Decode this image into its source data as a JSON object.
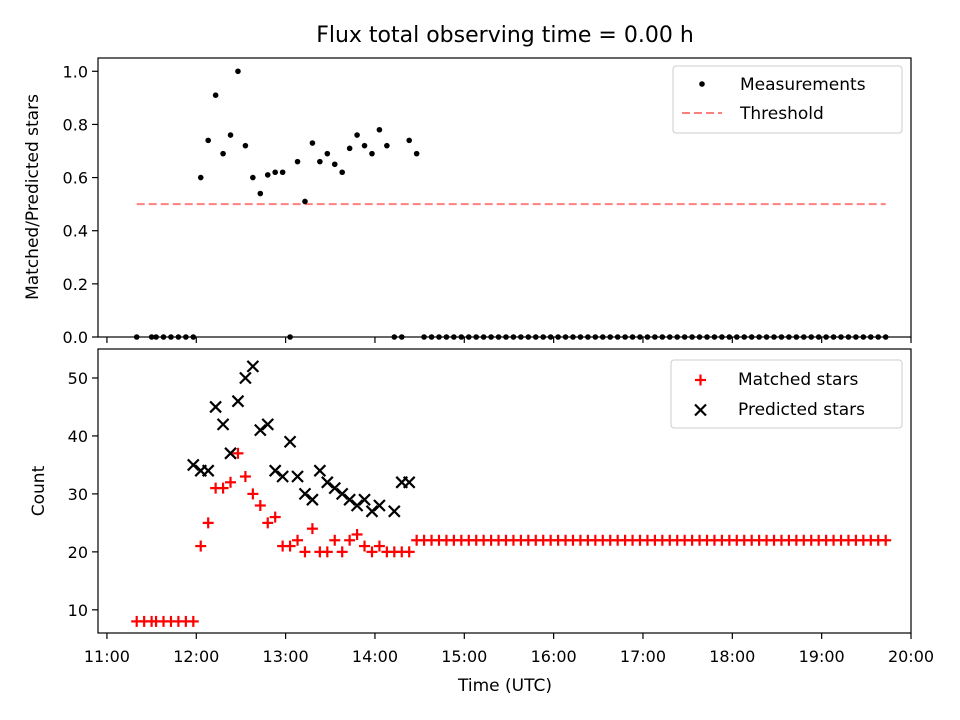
{
  "figure": {
    "title": "Flux total observing time = 0.00 h",
    "background": "#ffffff"
  },
  "chart_data": [
    {
      "type": "scatter",
      "panel": "top",
      "ylabel": "Matched/Predicted stars",
      "ylim": [
        0.0,
        1.05
      ],
      "yticks": [
        0.0,
        0.2,
        0.4,
        0.6,
        0.8,
        1.0
      ],
      "ytick_labels": [
        "0.0",
        "0.2",
        "0.4",
        "0.6",
        "0.8",
        "1.0"
      ],
      "xlim_hours": [
        10.9,
        20.0
      ],
      "xticks_hours": [
        11,
        12,
        13,
        14,
        15,
        16,
        17,
        18,
        19,
        20
      ],
      "xtick_labels_shown": false,
      "legend": {
        "placement": "upper-right",
        "entries": [
          "Measurements",
          "Threshold"
        ]
      },
      "series": [
        {
          "name": "Measurements",
          "marker": "dot",
          "color": "#000000",
          "x": [
            "11:20",
            "11:30",
            "11:33",
            "11:38",
            "11:43",
            "11:48",
            "11:53",
            "11:58",
            "12:03",
            "12:08",
            "12:13",
            "12:18",
            "12:23",
            "12:28",
            "12:33",
            "12:38",
            "12:43",
            "12:48",
            "12:53",
            "12:58",
            "13:03",
            "13:08",
            "13:13",
            "13:18",
            "13:23",
            "13:28",
            "13:33",
            "13:38",
            "13:43",
            "13:48",
            "13:53",
            "13:58",
            "14:03",
            "14:08",
            "14:13",
            "14:18",
            "14:23",
            "14:28",
            "14:33",
            "14:38",
            "14:43",
            "14:48",
            "14:53",
            "14:58",
            "15:03",
            "15:08",
            "15:13",
            "15:18",
            "15:23",
            "15:28",
            "15:33",
            "15:38",
            "15:43",
            "15:48",
            "15:53",
            "15:58",
            "16:03",
            "16:08",
            "16:13",
            "16:18",
            "16:23",
            "16:28",
            "16:33",
            "16:38",
            "16:43",
            "16:48",
            "16:53",
            "16:58",
            "17:03",
            "17:08",
            "17:13",
            "17:18",
            "17:23",
            "17:28",
            "17:33",
            "17:38",
            "17:43",
            "17:48",
            "17:53",
            "17:58",
            "18:03",
            "18:08",
            "18:13",
            "18:18",
            "18:23",
            "18:28",
            "18:33",
            "18:38",
            "18:43",
            "18:48",
            "18:53",
            "18:58",
            "19:03",
            "19:08",
            "19:13",
            "19:18",
            "19:23",
            "19:28",
            "19:33",
            "19:38",
            "19:43"
          ],
          "y": [
            0.0,
            0.0,
            0.0,
            0.0,
            0.0,
            0.0,
            0.0,
            0.0,
            0.6,
            0.74,
            0.91,
            0.69,
            0.76,
            1.0,
            0.72,
            0.6,
            0.54,
            0.61,
            0.62,
            0.62,
            0.0,
            0.66,
            0.51,
            0.73,
            0.66,
            0.69,
            0.65,
            0.62,
            0.71,
            0.76,
            0.72,
            0.69,
            0.78,
            0.72,
            0.0,
            0.0,
            0.74,
            0.69,
            0.0,
            0.0,
            0.0,
            0.0,
            0.0,
            0.0,
            0.0,
            0.0,
            0.0,
            0.0,
            0.0,
            0.0,
            0.0,
            0.0,
            0.0,
            0.0,
            0.0,
            0.0,
            0.0,
            0.0,
            0.0,
            0.0,
            0.0,
            0.0,
            0.0,
            0.0,
            0.0,
            0.0,
            0.0,
            0.0,
            0.0,
            0.0,
            0.0,
            0.0,
            0.0,
            0.0,
            0.0,
            0.0,
            0.0,
            0.0,
            0.0,
            0.0,
            0.0,
            0.0,
            0.0,
            0.0,
            0.0,
            0.0,
            0.0,
            0.0,
            0.0,
            0.0,
            0.0,
            0.0,
            0.0,
            0.0,
            0.0,
            0.0,
            0.0,
            0.0,
            0.0,
            0.0,
            0.0
          ]
        },
        {
          "name": "Threshold",
          "marker": "dashed-line",
          "color": "#ff7f7f",
          "x": [
            "11:20",
            "19:43"
          ],
          "y": [
            0.5,
            0.5
          ]
        }
      ]
    },
    {
      "type": "scatter",
      "panel": "bottom",
      "xlabel": "Time (UTC)",
      "ylabel": "Count",
      "ylim": [
        6,
        55
      ],
      "yticks": [
        10,
        20,
        30,
        40,
        50
      ],
      "ytick_labels": [
        "10",
        "20",
        "30",
        "40",
        "50"
      ],
      "xlim_hours": [
        10.9,
        20.0
      ],
      "xticks_hours": [
        11,
        12,
        13,
        14,
        15,
        16,
        17,
        18,
        19,
        20
      ],
      "xtick_labels": [
        "11:00",
        "12:00",
        "13:00",
        "14:00",
        "15:00",
        "16:00",
        "17:00",
        "18:00",
        "19:00",
        "20:00"
      ],
      "legend": {
        "placement": "upper-right",
        "entries": [
          "Matched stars",
          "Predicted stars"
        ]
      },
      "series": [
        {
          "name": "Matched stars",
          "marker": "plus",
          "color": "#ff0000",
          "x": [
            "11:20",
            "11:25",
            "11:30",
            "11:33",
            "11:38",
            "11:43",
            "11:48",
            "11:53",
            "11:58",
            "12:03",
            "12:08",
            "12:13",
            "12:18",
            "12:23",
            "12:28",
            "12:33",
            "12:38",
            "12:43",
            "12:48",
            "12:53",
            "12:58",
            "13:03",
            "13:08",
            "13:13",
            "13:18",
            "13:23",
            "13:28",
            "13:33",
            "13:38",
            "13:43",
            "13:48",
            "13:53",
            "13:58",
            "14:03",
            "14:08",
            "14:13",
            "14:18",
            "14:23",
            "14:28",
            "14:33",
            "14:38",
            "14:43",
            "14:48",
            "14:53",
            "14:58",
            "15:03",
            "15:08",
            "15:13",
            "15:18",
            "15:23",
            "15:28",
            "15:33",
            "15:38",
            "15:43",
            "15:48",
            "15:53",
            "15:58",
            "16:03",
            "16:08",
            "16:13",
            "16:18",
            "16:23",
            "16:28",
            "16:33",
            "16:38",
            "16:43",
            "16:48",
            "16:53",
            "16:58",
            "17:03",
            "17:08",
            "17:13",
            "17:18",
            "17:23",
            "17:28",
            "17:33",
            "17:38",
            "17:43",
            "17:48",
            "17:53",
            "17:58",
            "18:03",
            "18:08",
            "18:13",
            "18:18",
            "18:23",
            "18:28",
            "18:33",
            "18:38",
            "18:43",
            "18:48",
            "18:53",
            "18:58",
            "19:03",
            "19:08",
            "19:13",
            "19:18",
            "19:23",
            "19:28",
            "19:33",
            "19:38",
            "19:43"
          ],
          "y": [
            8,
            8,
            8,
            8,
            8,
            8,
            8,
            8,
            8,
            21,
            25,
            31,
            31,
            32,
            37,
            33,
            30,
            28,
            25,
            26,
            21,
            21,
            22,
            20,
            24,
            20,
            20,
            22,
            20,
            22,
            23,
            21,
            20,
            21,
            20,
            20,
            20,
            20,
            22,
            22,
            22,
            22,
            22,
            22,
            22,
            22,
            22,
            22,
            22,
            22,
            22,
            22,
            22,
            22,
            22,
            22,
            22,
            22,
            22,
            22,
            22,
            22,
            22,
            22,
            22,
            22,
            22,
            22,
            22,
            22,
            22,
            22,
            22,
            22,
            22,
            22,
            22,
            22,
            22,
            22,
            22,
            22,
            22,
            22,
            22,
            22,
            22,
            22,
            22,
            22,
            22,
            22,
            22,
            22,
            22,
            22,
            22,
            22,
            22,
            22,
            22,
            22
          ]
        },
        {
          "name": "Predicted stars",
          "marker": "x",
          "color": "#000000",
          "x": [
            "11:58",
            "12:03",
            "12:08",
            "12:13",
            "12:18",
            "12:23",
            "12:28",
            "12:33",
            "12:38",
            "12:43",
            "12:48",
            "12:53",
            "12:58",
            "13:03",
            "13:08",
            "13:13",
            "13:18",
            "13:23",
            "13:28",
            "13:33",
            "13:38",
            "13:43",
            "13:48",
            "13:53",
            "13:58",
            "14:03",
            "14:13",
            "14:18",
            "14:23"
          ],
          "y": [
            35,
            34,
            34,
            45,
            42,
            37,
            46,
            50,
            52,
            41,
            42,
            34,
            33,
            39,
            33,
            30,
            29,
            34,
            32,
            31,
            30,
            29,
            28,
            29,
            27,
            28,
            27,
            32,
            32
          ]
        }
      ]
    }
  ]
}
